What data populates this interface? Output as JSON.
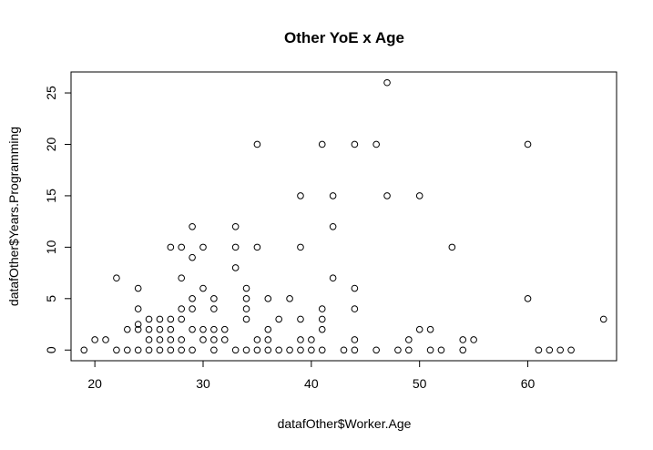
{
  "chart_data": {
    "type": "scatter",
    "title": "Other YoE x Age",
    "xlabel": "datafOther$Worker.Age",
    "ylabel": "datafOther$Years.Programming",
    "xlim": [
      17.8,
      68.2
    ],
    "ylim": [
      -1.04,
      27.04
    ],
    "x_ticks": [
      20,
      30,
      40,
      50,
      60
    ],
    "y_ticks": [
      0,
      5,
      10,
      15,
      20,
      25
    ],
    "grid": false,
    "marker": "open-circle",
    "points": [
      [
        19,
        0
      ],
      [
        20,
        1
      ],
      [
        21,
        1
      ],
      [
        22,
        0
      ],
      [
        22,
        7
      ],
      [
        23,
        0
      ],
      [
        23,
        2
      ],
      [
        24,
        0
      ],
      [
        24,
        2
      ],
      [
        24,
        2.5
      ],
      [
        24,
        4
      ],
      [
        24,
        6
      ],
      [
        25,
        0
      ],
      [
        25,
        1
      ],
      [
        25,
        2
      ],
      [
        25,
        3
      ],
      [
        26,
        0
      ],
      [
        26,
        1
      ],
      [
        26,
        2
      ],
      [
        26,
        3
      ],
      [
        27,
        0
      ],
      [
        27,
        1
      ],
      [
        27,
        2
      ],
      [
        27,
        3
      ],
      [
        27,
        10
      ],
      [
        28,
        0
      ],
      [
        28,
        1
      ],
      [
        28,
        3
      ],
      [
        28,
        4
      ],
      [
        28,
        7
      ],
      [
        28,
        10
      ],
      [
        29,
        0
      ],
      [
        29,
        2
      ],
      [
        29,
        4
      ],
      [
        29,
        5
      ],
      [
        29,
        9
      ],
      [
        29,
        12
      ],
      [
        30,
        1
      ],
      [
        30,
        2
      ],
      [
        30,
        6
      ],
      [
        30,
        10
      ],
      [
        31,
        0
      ],
      [
        31,
        1
      ],
      [
        31,
        2
      ],
      [
        31,
        4
      ],
      [
        31,
        5
      ],
      [
        32,
        1
      ],
      [
        32,
        2
      ],
      [
        33,
        0
      ],
      [
        33,
        8
      ],
      [
        33,
        10
      ],
      [
        33,
        12
      ],
      [
        34,
        0
      ],
      [
        34,
        3
      ],
      [
        34,
        4
      ],
      [
        34,
        5
      ],
      [
        34,
        6
      ],
      [
        35,
        0
      ],
      [
        35,
        1
      ],
      [
        35,
        10
      ],
      [
        35,
        20
      ],
      [
        36,
        0
      ],
      [
        36,
        1
      ],
      [
        36,
        2
      ],
      [
        36,
        5
      ],
      [
        37,
        0
      ],
      [
        37,
        3
      ],
      [
        38,
        0
      ],
      [
        38,
        5
      ],
      [
        39,
        0
      ],
      [
        39,
        1
      ],
      [
        39,
        3
      ],
      [
        39,
        10
      ],
      [
        39,
        15
      ],
      [
        40,
        0
      ],
      [
        40,
        1
      ],
      [
        41,
        0
      ],
      [
        41,
        2
      ],
      [
        41,
        3
      ],
      [
        41,
        4
      ],
      [
        41,
        20
      ],
      [
        42,
        7
      ],
      [
        42,
        12
      ],
      [
        42,
        15
      ],
      [
        43,
        0
      ],
      [
        44,
        0
      ],
      [
        44,
        1
      ],
      [
        44,
        4
      ],
      [
        44,
        6
      ],
      [
        44,
        20
      ],
      [
        46,
        0
      ],
      [
        46,
        20
      ],
      [
        47,
        15
      ],
      [
        47,
        26
      ],
      [
        48,
        0
      ],
      [
        49,
        0
      ],
      [
        49,
        1
      ],
      [
        50,
        2
      ],
      [
        50,
        15
      ],
      [
        51,
        0
      ],
      [
        51,
        2
      ],
      [
        52,
        0
      ],
      [
        53,
        10
      ],
      [
        54,
        0
      ],
      [
        54,
        1
      ],
      [
        55,
        1
      ],
      [
        60,
        5
      ],
      [
        60,
        20
      ],
      [
        61,
        0
      ],
      [
        62,
        0
      ],
      [
        63,
        0
      ],
      [
        64,
        0
      ],
      [
        67,
        3
      ]
    ]
  }
}
